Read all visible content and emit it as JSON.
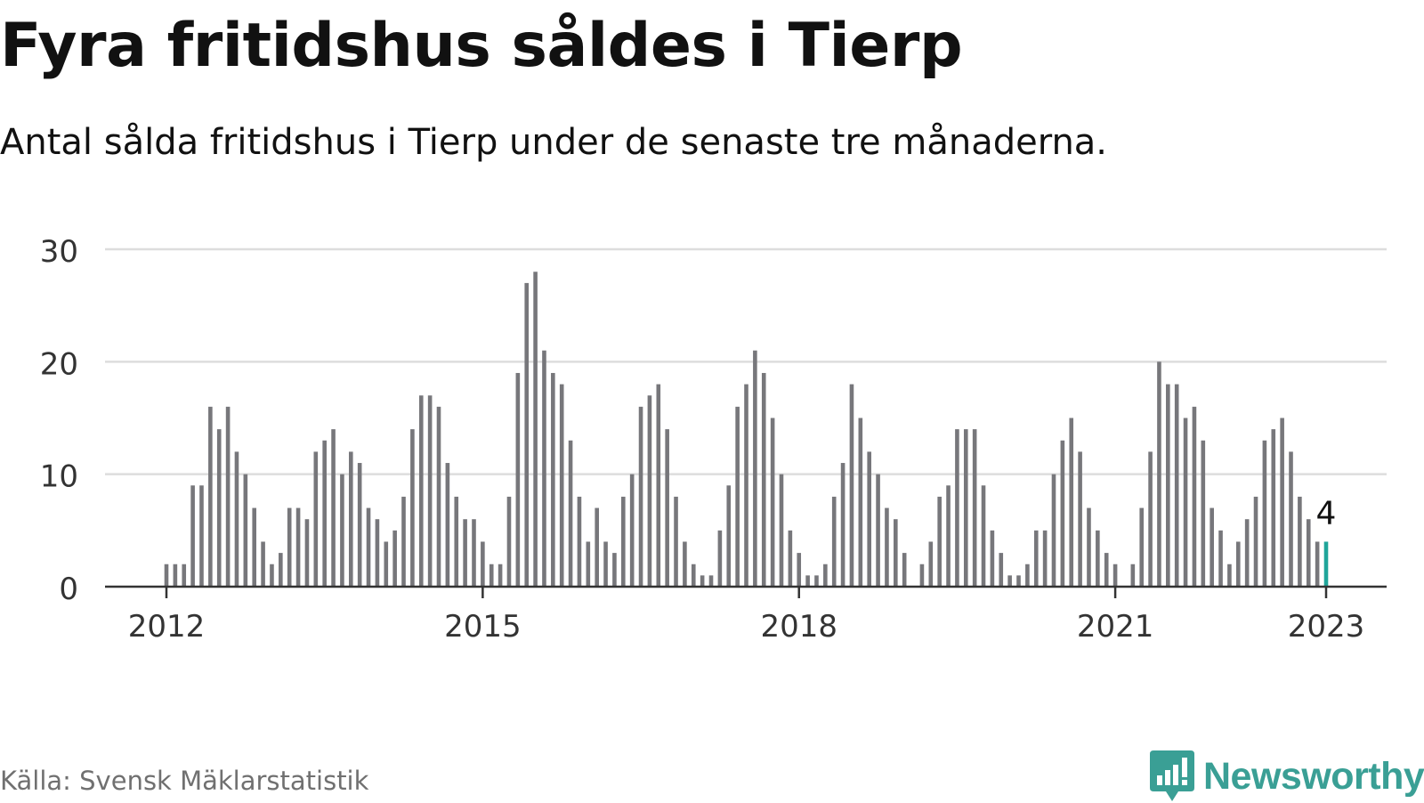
{
  "header": {
    "title": "Fyra fritidshus såldes i Tierp",
    "subtitle": "Antal sålda fritidshus i Tierp under de senaste tre månaderna."
  },
  "footer": {
    "source": "Källa: Svensk Mäklarstatistik",
    "brand": "Newsworthy"
  },
  "colors": {
    "bar": "#77777b",
    "highlight": "#1fa59a",
    "grid": "#dddddd",
    "axis": "#333333",
    "brand": "#3a9f95"
  },
  "chart_data": {
    "type": "bar",
    "start": "2012-01",
    "end": "2023-01",
    "highlight_label": "4",
    "xticks": [
      "2012",
      "2015",
      "2018",
      "2021",
      "2023"
    ],
    "yticks": [
      0,
      10,
      20,
      30
    ],
    "ylim": [
      0,
      30
    ],
    "grid": true,
    "values": [
      2,
      2,
      2,
      9,
      9,
      16,
      14,
      16,
      12,
      10,
      7,
      4,
      2,
      3,
      7,
      7,
      6,
      12,
      13,
      14,
      10,
      12,
      11,
      7,
      6,
      4,
      5,
      8,
      14,
      17,
      17,
      16,
      11,
      8,
      6,
      6,
      4,
      2,
      2,
      8,
      19,
      27,
      28,
      21,
      19,
      18,
      13,
      8,
      4,
      7,
      4,
      3,
      8,
      10,
      16,
      17,
      18,
      14,
      8,
      4,
      2,
      1,
      1,
      5,
      9,
      16,
      18,
      21,
      19,
      15,
      10,
      5,
      3,
      1,
      1,
      2,
      8,
      11,
      18,
      15,
      12,
      10,
      7,
      6,
      3,
      0,
      2,
      4,
      8,
      9,
      14,
      14,
      14,
      9,
      5,
      3,
      1,
      1,
      2,
      5,
      5,
      10,
      13,
      15,
      12,
      7,
      5,
      3,
      2,
      0,
      2,
      7,
      12,
      20,
      18,
      18,
      15,
      16,
      13,
      7,
      5,
      2,
      4,
      6,
      8,
      13,
      14,
      15,
      12,
      8,
      6,
      4,
      4
    ]
  }
}
